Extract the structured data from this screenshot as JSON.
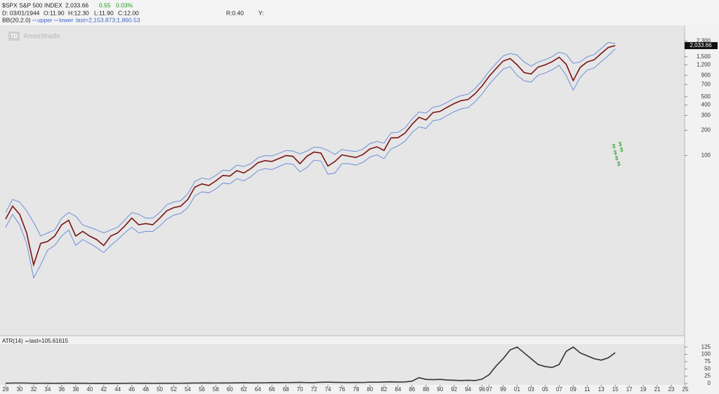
{
  "header": {
    "price": "2,033.66",
    "change": "0.55",
    "change_pct": "0.03%",
    "date": "D: 03/01/1944",
    "open": "O:11.90",
    "high": "H:12.30",
    "low": "L:11.90",
    "close": "C:12.00",
    "r": "R:0.40",
    "y": "Y:",
    "bb": "BB(20,2.0)",
    "bb_last": "last=2,153.873;1,860.53"
  },
  "watermark": {
    "logo": "TD",
    "brand": "Ameritrade"
  },
  "dividend_markers": [
    "$",
    "$",
    "$",
    "$",
    "$",
    "$"
  ],
  "chart_data": [
    {
      "type": "line",
      "log_scale": true,
      "x": [
        1928,
        1929,
        1930,
        1931,
        1932,
        1933,
        1934,
        1935,
        1936,
        1937,
        1938,
        1939,
        1940,
        1941,
        1942,
        1943,
        1944,
        1945,
        1946,
        1947,
        1948,
        1949,
        1950,
        1951,
        1952,
        1953,
        1954,
        1955,
        1956,
        1957,
        1958,
        1959,
        1960,
        1961,
        1962,
        1963,
        1964,
        1965,
        1966,
        1967,
        1968,
        1969,
        1970,
        1971,
        1972,
        1973,
        1974,
        1975,
        1976,
        1977,
        1978,
        1979,
        1980,
        1981,
        1982,
        1983,
        1984,
        1985,
        1986,
        1987,
        1988,
        1989,
        1990,
        1991,
        1992,
        1993,
        1994,
        1995,
        1996,
        1997,
        1998,
        1999,
        2000,
        2001,
        2002,
        2003,
        2004,
        2005,
        2006,
        2007,
        2008,
        2009,
        2010,
        2011,
        2012,
        2013,
        2014,
        2015
      ],
      "xlim": [
        1927.2,
        2025.1
      ],
      "ylim": [
        0.76,
        3550
      ],
      "yticks": [
        100,
        200,
        300,
        400,
        500,
        700,
        900,
        {
          "value": 1200,
          "label": "1,200"
        },
        {
          "value": 1500,
          "label": "1,500"
        },
        {
          "value": 2300,
          "label": "2,300"
        }
      ],
      "series": [
        {
          "name": "$SPX S&P 500 INDEX",
          "color": "#7a1414",
          "values": [
            17.5,
            25,
            20,
            12,
            5,
            9,
            9.5,
            11,
            15,
            17,
            11,
            12.5,
            11,
            10,
            8.5,
            11,
            12,
            14.5,
            18,
            15,
            15.5,
            15,
            18,
            22,
            24,
            25,
            30,
            42,
            46,
            44,
            50,
            58,
            57,
            66,
            62,
            70,
            82,
            87,
            85,
            92,
            100,
            98,
            80,
            98,
            110,
            107,
            75,
            85,
            102,
            98,
            95,
            103,
            120,
            127,
            115,
            162,
            163,
            185,
            235,
            285,
            265,
            325,
            335,
            375,
            415,
            450,
            465,
            545,
            675,
            875,
            1085,
            1330,
            1430,
            1200,
            970,
            935,
            1130,
            1200,
            1310,
            1480,
            1220,
            780,
            1120,
            1300,
            1380,
            1640,
            1930,
            2033.66
          ]
        },
        {
          "name": "upper",
          "color": "#6d8fdc",
          "values": [
            21,
            30,
            28,
            22,
            16,
            11,
            12,
            13,
            18,
            21,
            19,
            15,
            14,
            13,
            12,
            13,
            14,
            17,
            21,
            20,
            18,
            18,
            21,
            26,
            28,
            29,
            35,
            49,
            54,
            52,
            58,
            67,
            66,
            77,
            74,
            80,
            94,
            100,
            99,
            106,
            115,
            113,
            105,
            113,
            126,
            124,
            115,
            103,
            118,
            114,
            112,
            119,
            139,
            147,
            140,
            187,
            189,
            213,
            271,
            330,
            320,
            375,
            390,
            430,
            478,
            518,
            535,
            627,
            776,
            1006,
            1248,
            1530,
            1645,
            1570,
            1300,
            1160,
            1300,
            1380,
            1507,
            1700,
            1600,
            1250,
            1300,
            1500,
            1590,
            1886,
            2220,
            2153.873
          ]
        },
        {
          "name": "lower",
          "color": "#6d8fdc",
          "values": [
            14,
            20,
            15,
            9,
            3.5,
            5,
            7.5,
            8.5,
            11,
            13,
            8.5,
            10,
            9,
            8,
            7,
            8.5,
            10,
            12,
            14,
            12,
            12.5,
            12.5,
            14.5,
            17.5,
            19.5,
            20.5,
            24,
            33,
            37,
            36,
            40,
            47,
            46,
            53,
            50,
            56,
            66,
            70,
            68,
            74,
            80,
            79,
            64,
            72,
            88,
            86,
            60,
            62,
            80,
            80,
            77,
            83,
            96,
            102,
            92,
            120,
            130,
            148,
            188,
            220,
            210,
            260,
            268,
            300,
            332,
            360,
            372,
            436,
            540,
            700,
            868,
            1064,
            1144,
            900,
            776,
            750,
            904,
            960,
            1048,
            1184,
            900,
            600,
            850,
            1040,
            1104,
            1312,
            1544,
            1860.53
          ]
        }
      ]
    },
    {
      "type": "line",
      "x": [
        1928,
        1929,
        1930,
        1931,
        1932,
        1933,
        1934,
        1935,
        1936,
        1937,
        1938,
        1939,
        1940,
        1941,
        1942,
        1943,
        1944,
        1945,
        1946,
        1947,
        1948,
        1949,
        1950,
        1951,
        1952,
        1953,
        1954,
        1955,
        1956,
        1957,
        1958,
        1959,
        1960,
        1961,
        1962,
        1963,
        1964,
        1965,
        1966,
        1967,
        1968,
        1969,
        1970,
        1971,
        1972,
        1973,
        1974,
        1975,
        1976,
        1977,
        1978,
        1979,
        1980,
        1981,
        1982,
        1983,
        1984,
        1985,
        1986,
        1987,
        1988,
        1989,
        1990,
        1991,
        1992,
        1993,
        1994,
        1995,
        1996,
        1997,
        1998,
        1999,
        2000,
        2001,
        2002,
        2003,
        2004,
        2005,
        2006,
        2007,
        2008,
        2009,
        2010,
        2011,
        2012,
        2013,
        2014,
        2015
      ],
      "xlim": [
        1927.2,
        2025.1
      ],
      "xticks": [
        {
          "value": 1928,
          "label": "28"
        },
        {
          "value": 1930,
          "label": "30"
        },
        {
          "value": 1932,
          "label": "32"
        },
        {
          "value": 1934,
          "label": "34"
        },
        {
          "value": 1936,
          "label": "36"
        },
        {
          "value": 1938,
          "label": "38"
        },
        {
          "value": 1940,
          "label": "40"
        },
        {
          "value": 1942,
          "label": "42"
        },
        {
          "value": 1944,
          "label": "44"
        },
        {
          "value": 1946,
          "label": "46"
        },
        {
          "value": 1948,
          "label": "48"
        },
        {
          "value": 1950,
          "label": "50"
        },
        {
          "value": 1952,
          "label": "52"
        },
        {
          "value": 1954,
          "label": "54"
        },
        {
          "value": 1956,
          "label": "56"
        },
        {
          "value": 1958,
          "label": "58"
        },
        {
          "value": 1960,
          "label": "60"
        },
        {
          "value": 1962,
          "label": "62"
        },
        {
          "value": 1964,
          "label": "64"
        },
        {
          "value": 1966,
          "label": "66"
        },
        {
          "value": 1968,
          "label": "68"
        },
        {
          "value": 1970,
          "label": "70"
        },
        {
          "value": 1972,
          "label": "72"
        },
        {
          "value": 1974,
          "label": "74"
        },
        {
          "value": 1976,
          "label": "76"
        },
        {
          "value": 1978,
          "label": "78"
        },
        {
          "value": 1980,
          "label": "80"
        },
        {
          "value": 1982,
          "label": "82"
        },
        {
          "value": 1984,
          "label": "84"
        },
        {
          "value": 1986,
          "label": "86"
        },
        {
          "value": 1988,
          "label": "88"
        },
        {
          "value": 1990,
          "label": "90"
        },
        {
          "value": 1992,
          "label": "92"
        },
        {
          "value": 1994,
          "label": "94"
        },
        {
          "value": 1996,
          "label": "96"
        },
        {
          "value": 1997,
          "label": "97"
        },
        {
          "value": 1999,
          "label": "99"
        },
        {
          "value": 2001,
          "label": "01"
        },
        {
          "value": 2003,
          "label": "03"
        },
        {
          "value": 2005,
          "label": "05"
        },
        {
          "value": 2007,
          "label": "07"
        },
        {
          "value": 2009,
          "label": "09"
        },
        {
          "value": 2011,
          "label": "11"
        },
        {
          "value": 2013,
          "label": "13"
        },
        {
          "value": 2015,
          "label": "15"
        },
        {
          "value": 2017,
          "label": "17"
        },
        {
          "value": 2019,
          "label": "19"
        },
        {
          "value": 2021,
          "label": "21"
        },
        {
          "value": 2023,
          "label": "23"
        },
        {
          "value": 2025,
          "label": "25"
        }
      ],
      "ylim": [
        0,
        135
      ],
      "yticks": [
        0,
        25,
        50,
        75,
        100,
        125
      ],
      "last_label": "last=105.61615",
      "series": [
        {
          "name": "ATR(14)",
          "color": "#333333",
          "values": [
            0.8,
            1.5,
            1.5,
            1.2,
            0.8,
            0.9,
            0.7,
            0.6,
            0.8,
            1.0,
            0.8,
            0.7,
            0.6,
            0.5,
            0.5,
            0.5,
            0.5,
            0.6,
            0.9,
            0.7,
            0.7,
            0.6,
            0.7,
            0.8,
            0.8,
            0.9,
            1.0,
            1.5,
            1.6,
            1.6,
            1.5,
            1.7,
            1.8,
            1.9,
            2.5,
            2.0,
            2.1,
            2.4,
            2.9,
            2.8,
            3.0,
            3.2,
            3.8,
            3.0,
            2.8,
            4.0,
            4.5,
            3.8,
            3.5,
            3.2,
            3.5,
            3.3,
            4.5,
            4.2,
            5.0,
            5.5,
            5.0,
            5.2,
            8,
            20,
            14,
            13,
            14,
            12,
            11,
            10,
            11,
            10,
            15,
            30,
            60,
            85,
            115,
            125,
            105,
            85,
            65,
            58,
            55,
            65,
            110,
            125,
            105,
            95,
            85,
            80,
            88,
            105.61615
          ]
        }
      ]
    }
  ]
}
